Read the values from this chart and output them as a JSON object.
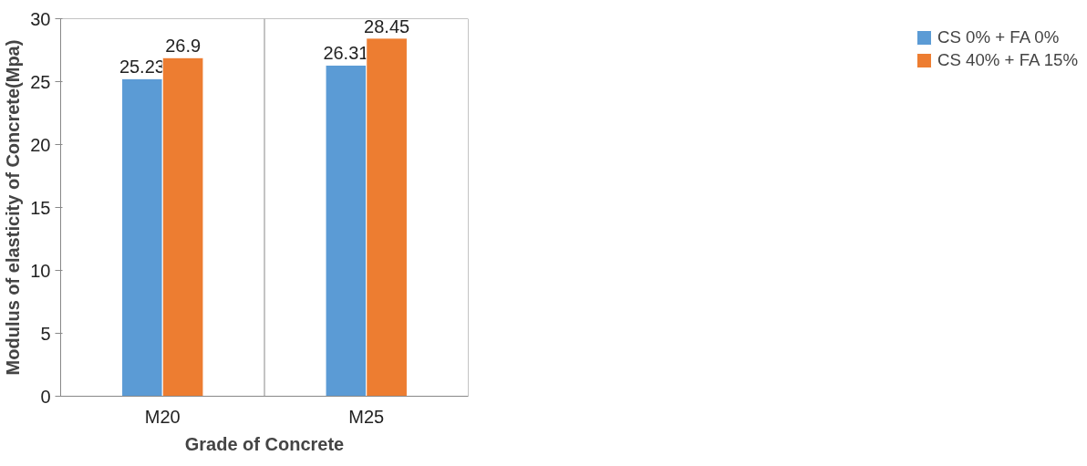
{
  "chart_data": {
    "type": "bar",
    "xlabel": "Grade of Concrete",
    "ylabel": "Modulus of elasticity of Concrete(Mpa)",
    "categories": [
      "M20",
      "M25"
    ],
    "series": [
      {
        "name": "CS 0% + FA 0%",
        "color": "#5b9bd5",
        "values": [
          25.23,
          26.31
        ]
      },
      {
        "name": "CS 40% + FA 15%",
        "color": "#ed7d31",
        "values": [
          26.9,
          28.45
        ]
      }
    ],
    "ylim": [
      0,
      30
    ],
    "yticks": [
      0,
      5,
      10,
      15,
      20,
      25,
      30
    ],
    "grid": "x",
    "legend": "right",
    "data_labels": true
  }
}
